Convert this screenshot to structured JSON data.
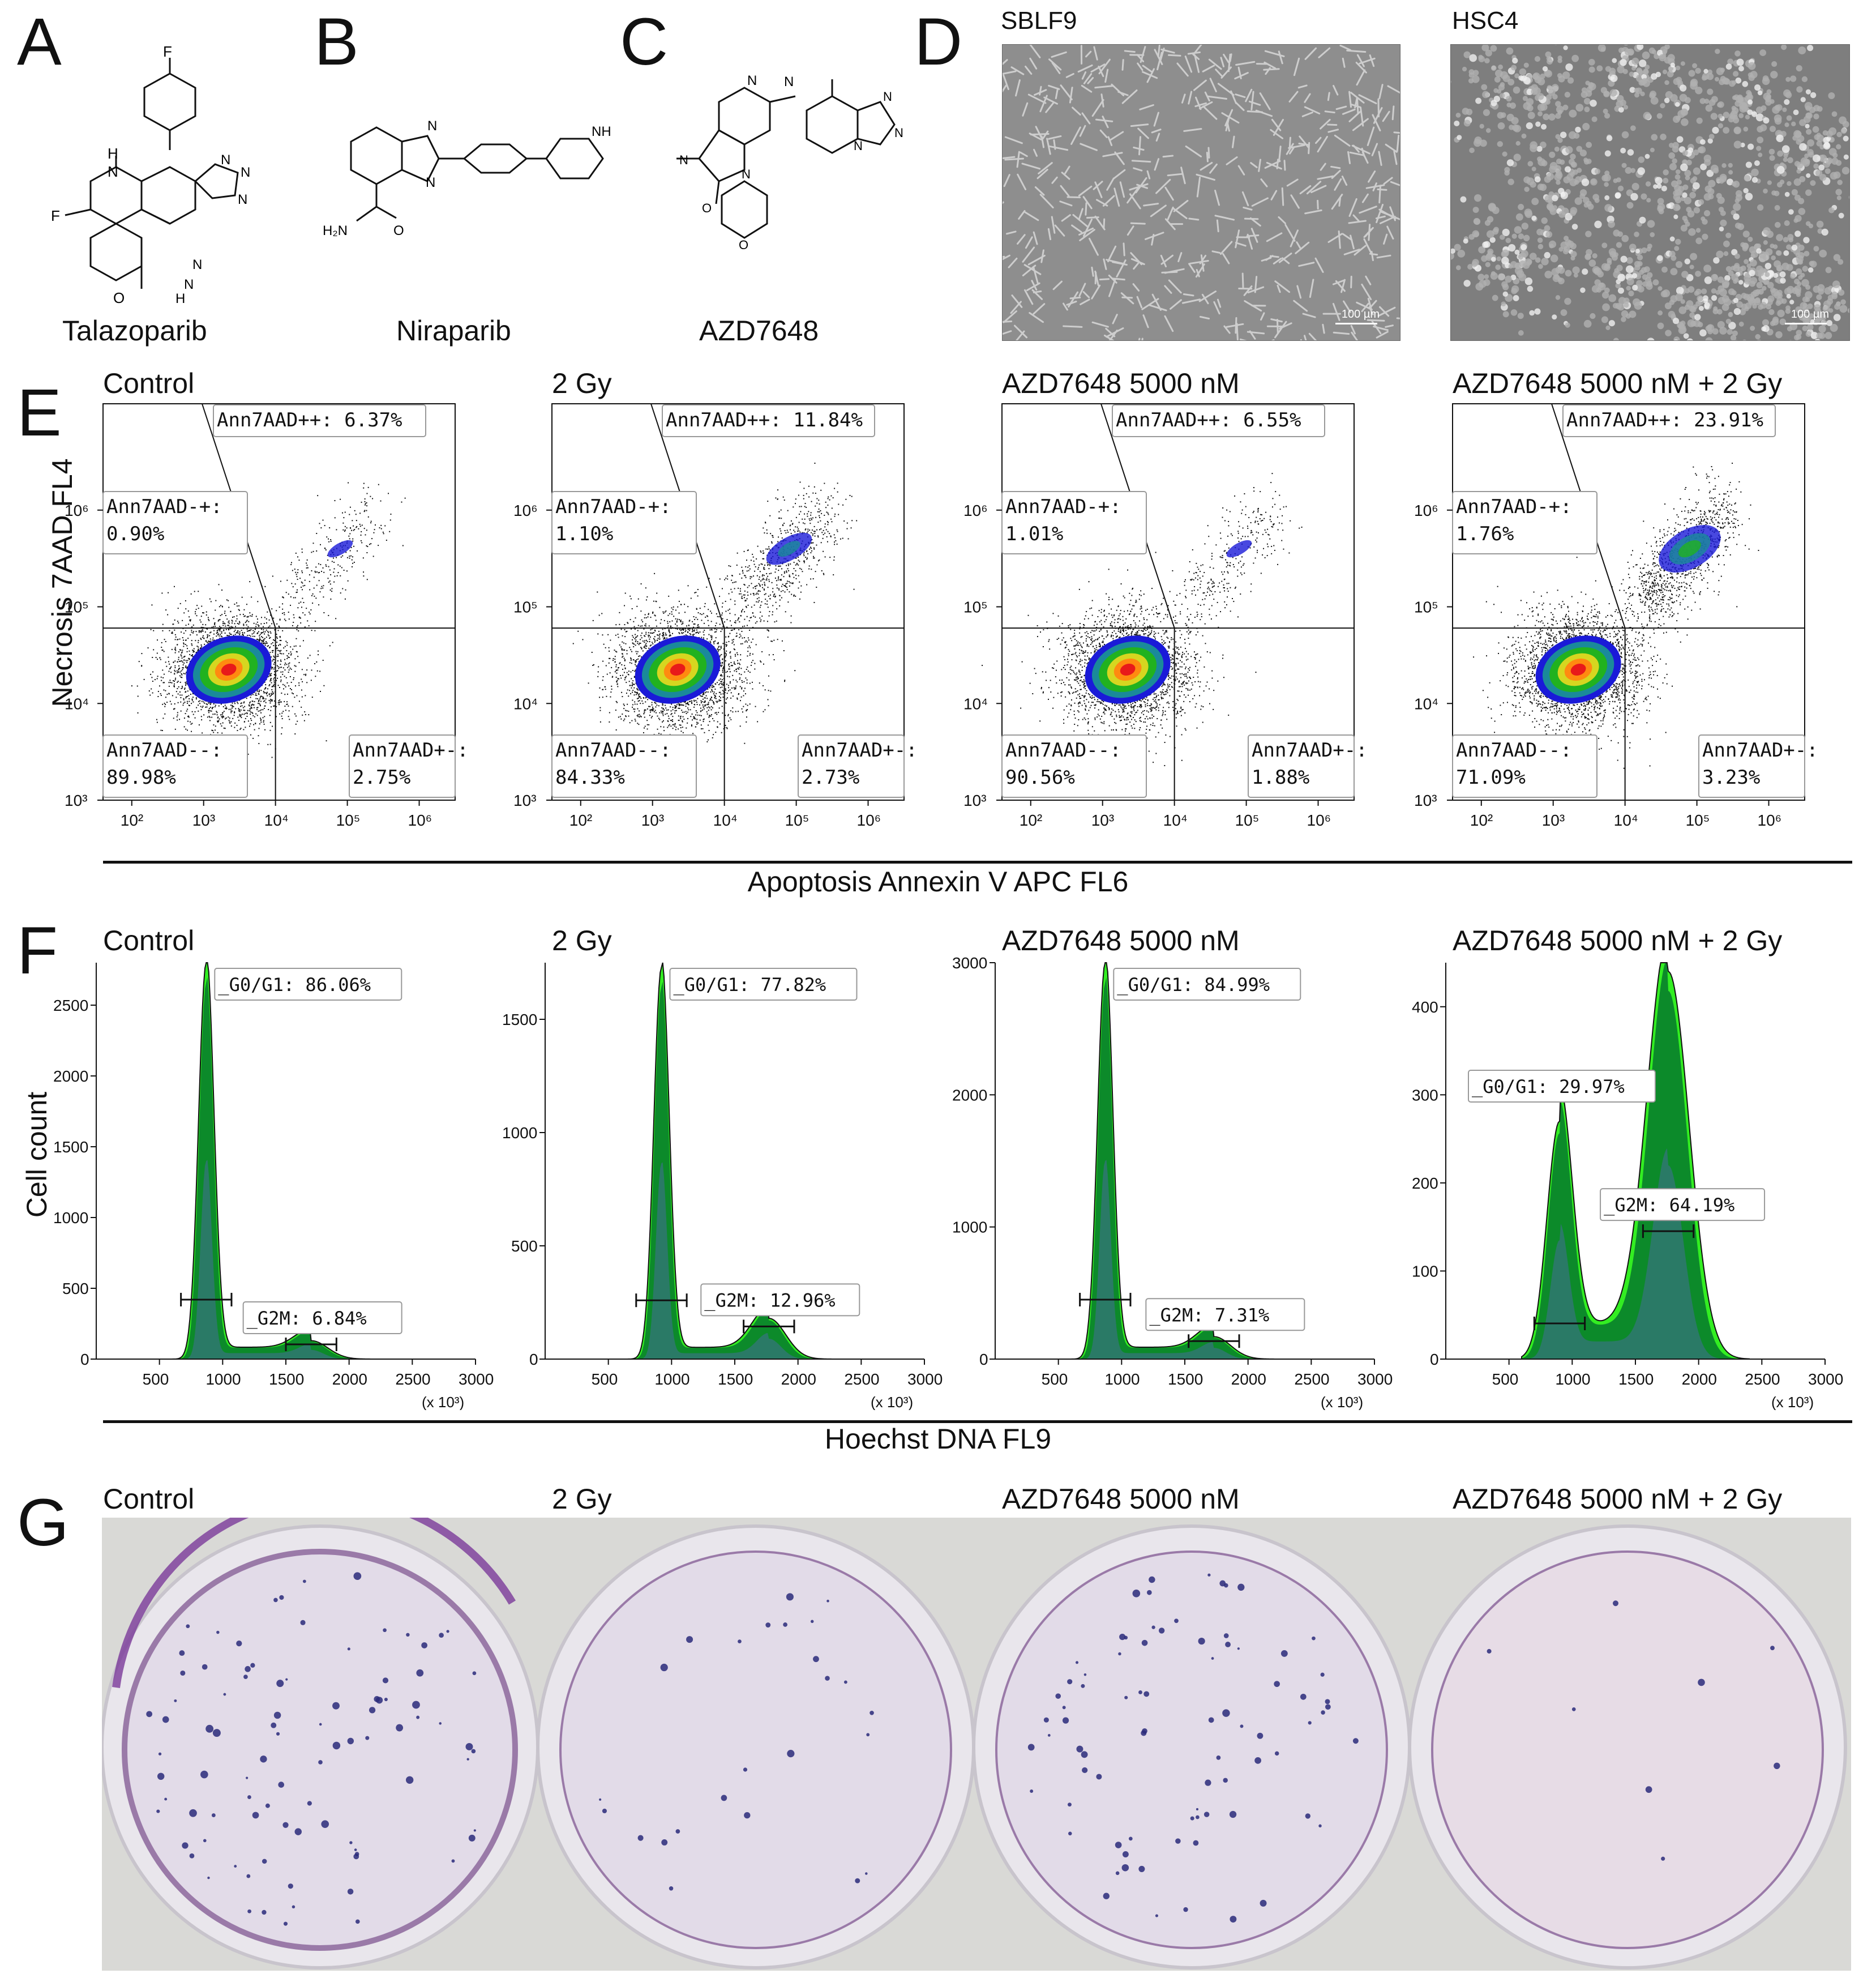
{
  "panels": {
    "A": "A",
    "B": "B",
    "C": "C",
    "D": "D",
    "E": "E",
    "F": "F",
    "G": "G"
  },
  "molecules": [
    {
      "name": "Talazoparib"
    },
    {
      "name": "Niraparib"
    },
    {
      "name": "AZD7648"
    }
  ],
  "microscopy": [
    {
      "title": "SBLF9",
      "scale": "100 µm"
    },
    {
      "title": "HSC4",
      "scale": "100 µm"
    }
  ],
  "conditions": [
    "Control",
    "2 Gy",
    "AZD7648 5000 nM",
    "AZD7648 5000 nM + 2 Gy"
  ],
  "flow": {
    "y_axis_label": "Necrosis 7AAD FL4",
    "x_axis_label": "Apoptosis Annexin V APC FL6",
    "x_ticks": [
      "10²",
      "10³",
      "10⁴",
      "10⁵",
      "10⁶"
    ],
    "y_ticks": [
      "10³",
      "10⁴",
      "10⁵",
      "10⁶"
    ],
    "plots": [
      {
        "pp": "Ann7AAD++: 6.37%",
        "mp_name": "Ann7AAD-+:",
        "mp_val": "0.90%",
        "mm_name": "Ann7AAD--:",
        "mm_val": "89.98%",
        "pm_name": "Ann7AAD+-:",
        "pm_val": "2.75%"
      },
      {
        "pp": "Ann7AAD++: 11.84%",
        "mp_name": "Ann7AAD-+:",
        "mp_val": "1.10%",
        "mm_name": "Ann7AAD--:",
        "mm_val": "84.33%",
        "pm_name": "Ann7AAD+-:",
        "pm_val": "2.73%"
      },
      {
        "pp": "Ann7AAD++: 6.55%",
        "mp_name": "Ann7AAD-+:",
        "mp_val": "1.01%",
        "mm_name": "Ann7AAD--:",
        "mm_val": "90.56%",
        "pm_name": "Ann7AAD+-:",
        "pm_val": "1.88%"
      },
      {
        "pp": "Ann7AAD++: 23.91%",
        "mp_name": "Ann7AAD-+:",
        "mp_val": "1.76%",
        "mm_name": "Ann7AAD--:",
        "mm_val": "71.09%",
        "pm_name": "Ann7AAD+-:",
        "pm_val": "3.23%"
      }
    ]
  },
  "cellcycle": {
    "y_axis_label": "Cell count",
    "x_axis_label": "Hoechst DNA FL9",
    "x_unit": "(x 10³)",
    "x_ticks": [
      "500",
      "1000",
      "1500",
      "2000",
      "2500",
      "3000"
    ],
    "plots": [
      {
        "g1": "_G0/G1: 86.06%",
        "g2m": "_G2M: 6.84%",
        "y_ticks": [
          "0",
          "500",
          "1000",
          "1500",
          "2000",
          "2500"
        ]
      },
      {
        "g1": "_G0/G1: 77.82%",
        "g2m": "_G2M: 12.96%",
        "y_ticks": [
          "0",
          "500",
          "1000",
          "1500"
        ]
      },
      {
        "g1": "_G0/G1: 84.99%",
        "g2m": "_G2M: 7.31%",
        "y_ticks": [
          "0",
          "1000",
          "2000",
          "3000"
        ]
      },
      {
        "g1": "_G0/G1: 29.97%",
        "g2m": "_G2M: 64.19%",
        "y_ticks": [
          "0",
          "100",
          "200",
          "300",
          "400"
        ]
      }
    ]
  },
  "colors": {
    "histogram_light": "#33ee22",
    "histogram_dark": "#0c8a2a",
    "histogram_teal": "#2a7a66",
    "plate_stain": "#7a3a9a",
    "colony": "#2a2a7a"
  },
  "chart_data": [
    {
      "type": "scatter",
      "title": "Control",
      "xlabel": "Apoptosis Annexin V APC FL6",
      "ylabel": "Necrosis 7AAD FL4",
      "x_scale": "log",
      "y_scale": "log",
      "quadrants": {
        "Ann7AAD++": 6.37,
        "Ann7AAD-+": 0.9,
        "Ann7AAD--": 89.98,
        "Ann7AAD+-": 2.75
      }
    },
    {
      "type": "scatter",
      "title": "2 Gy",
      "xlabel": "Apoptosis Annexin V APC FL6",
      "ylabel": "Necrosis 7AAD FL4",
      "x_scale": "log",
      "y_scale": "log",
      "quadrants": {
        "Ann7AAD++": 11.84,
        "Ann7AAD-+": 1.1,
        "Ann7AAD--": 84.33,
        "Ann7AAD+-": 2.73
      }
    },
    {
      "type": "scatter",
      "title": "AZD7648 5000 nM",
      "xlabel": "Apoptosis Annexin V APC FL6",
      "ylabel": "Necrosis 7AAD FL4",
      "x_scale": "log",
      "y_scale": "log",
      "quadrants": {
        "Ann7AAD++": 6.55,
        "Ann7AAD-+": 1.01,
        "Ann7AAD--": 90.56,
        "Ann7AAD+-": 1.88
      }
    },
    {
      "type": "scatter",
      "title": "AZD7648 5000 nM + 2 Gy",
      "xlabel": "Apoptosis Annexin V APC FL6",
      "ylabel": "Necrosis 7AAD FL4",
      "x_scale": "log",
      "y_scale": "log",
      "quadrants": {
        "Ann7AAD++": 23.91,
        "Ann7AAD-+": 1.76,
        "Ann7AAD--": 71.09,
        "Ann7AAD+-": 3.23
      }
    },
    {
      "type": "area",
      "title": "Control",
      "xlabel": "Hoechst DNA FL9",
      "ylabel": "Cell count",
      "xlim": [
        0,
        3000
      ],
      "ylim": [
        0,
        2800
      ],
      "peaks": [
        {
          "x": 870,
          "y": 2800
        },
        {
          "x": 1700,
          "y": 130
        }
      ],
      "gates": {
        "_G0/G1": 86.06,
        "_G2M": 6.84
      }
    },
    {
      "type": "area",
      "title": "2 Gy",
      "xlabel": "Hoechst DNA FL9",
      "ylabel": "Cell count",
      "xlim": [
        0,
        3000
      ],
      "ylim": [
        0,
        1750
      ],
      "peaks": [
        {
          "x": 920,
          "y": 1730
        },
        {
          "x": 1770,
          "y": 180
        }
      ],
      "gates": {
        "_G0/G1": 77.82,
        "_G2M": 12.96
      }
    },
    {
      "type": "area",
      "title": "AZD7648 5000 nM",
      "xlabel": "Hoechst DNA FL9",
      "ylabel": "Cell count",
      "xlim": [
        0,
        3000
      ],
      "ylim": [
        0,
        3000
      ],
      "peaks": [
        {
          "x": 870,
          "y": 3000
        },
        {
          "x": 1730,
          "y": 170
        }
      ],
      "gates": {
        "_G0/G1": 84.99,
        "_G2M": 7.31
      }
    },
    {
      "type": "area",
      "title": "AZD7648 5000 nM + 2 Gy",
      "xlabel": "Hoechst DNA FL9",
      "ylabel": "Cell count",
      "xlim": [
        0,
        3000
      ],
      "ylim": [
        0,
        450
      ],
      "peaks": [
        {
          "x": 900,
          "y": 270
        },
        {
          "x": 1760,
          "y": 440
        }
      ],
      "gates": {
        "_G0/G1": 29.97,
        "_G2M": 64.19
      }
    }
  ]
}
